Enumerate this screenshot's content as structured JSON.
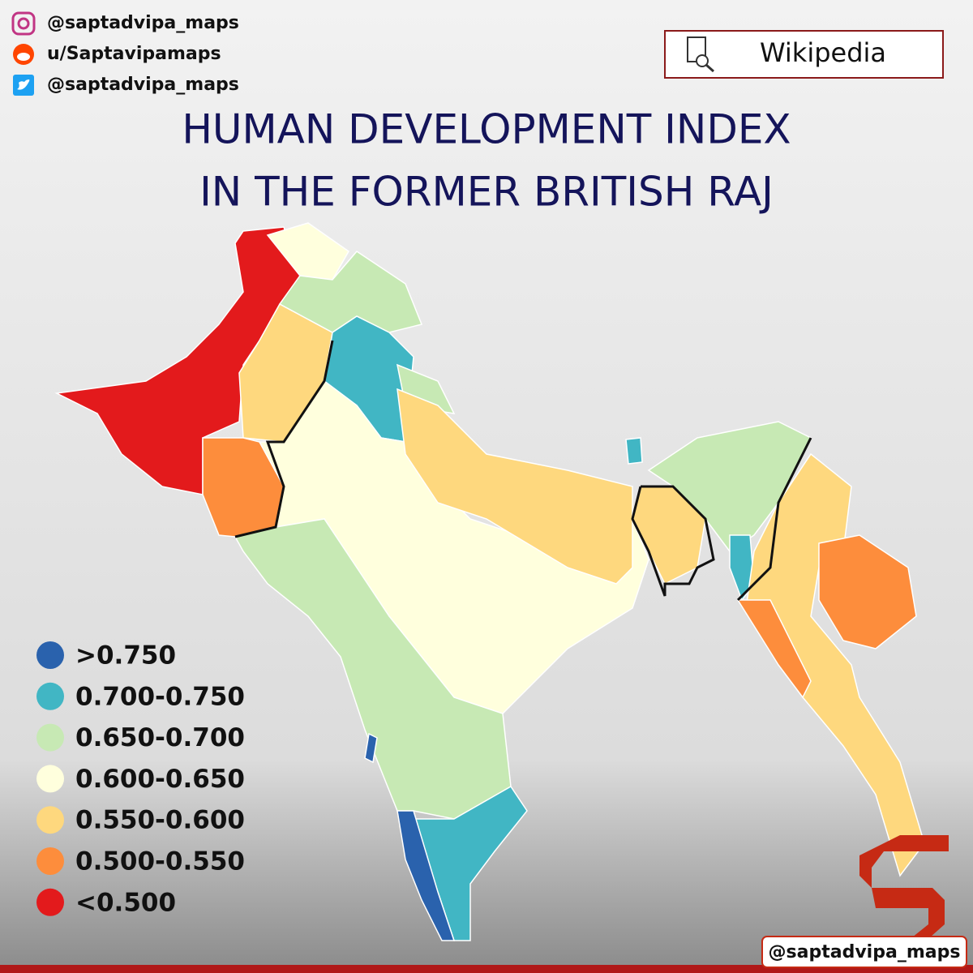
{
  "socials": [
    "@saptadvipa_maps",
    "u/Saptavipamaps",
    "@saptadvipa_maps"
  ],
  "source": "Wikipedia",
  "title": [
    "HUMAN DEVELOPMENT INDEX",
    "IN THE FORMER BRITISH RAJ"
  ],
  "legend": [
    {
      "label": ">0.750",
      "color": "#2a62ad"
    },
    {
      "label": "0.700-0.750",
      "color": "#41b6c4"
    },
    {
      "label": "0.650-0.700",
      "color": "#c7e9b4"
    },
    {
      "label": "0.600-0.650",
      "color": "#ffffdd"
    },
    {
      "label": "0.550-0.600",
      "color": "#fed87e"
    },
    {
      "label": "0.500-0.550",
      "color": "#fd8d3c"
    },
    {
      "label": "<0.500",
      "color": "#e31a1c"
    }
  ],
  "footer_handle": "@saptadvipa_maps"
}
